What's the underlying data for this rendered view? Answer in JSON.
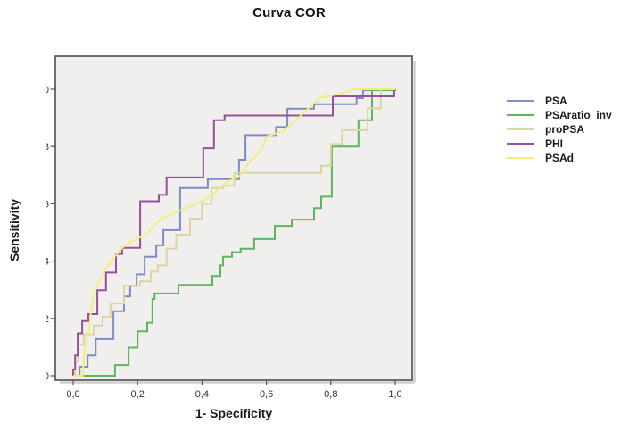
{
  "figure": {
    "title": "Curva COR"
  },
  "axes": {
    "x_label": "1- Specificity",
    "y_label": "Sensitivity",
    "x_tick_labels": [
      "0,0",
      "0,2",
      "0,4",
      "0,6",
      "0,8",
      "1,0"
    ],
    "y_tick_labels": [
      "0,0",
      "0,2",
      "0,4",
      "0,6",
      "0,8",
      "1,0"
    ]
  },
  "chart_data": {
    "type": "line",
    "subtype": "roc-step-curves",
    "title": "Curva COR",
    "xlabel": "1- Specificity",
    "ylabel": "Sensitivity",
    "xlim": [
      0,
      1
    ],
    "ylim": [
      0,
      1
    ],
    "x_ticks": [
      0,
      0.2,
      0.4,
      0.6,
      0.8,
      1.0
    ],
    "y_ticks": [
      0,
      0.2,
      0.4,
      0.6,
      0.8,
      1.0
    ],
    "grid": false,
    "legend_position": "right",
    "plot_background": "#f0efed",
    "frame_color": "#4e4e4e",
    "series": [
      {
        "name": "PSA",
        "color": "#7e8cc6",
        "points": [
          [
            0,
            0
          ],
          [
            0.02,
            0
          ],
          [
            0.02,
            0.031
          ],
          [
            0.045,
            0.031
          ],
          [
            0.045,
            0.071
          ],
          [
            0.07,
            0.071
          ],
          [
            0.07,
            0.128
          ],
          [
            0.125,
            0.128
          ],
          [
            0.125,
            0.225
          ],
          [
            0.158,
            0.225
          ],
          [
            0.158,
            0.277
          ],
          [
            0.177,
            0.277
          ],
          [
            0.177,
            0.314
          ],
          [
            0.197,
            0.314
          ],
          [
            0.197,
            0.354
          ],
          [
            0.222,
            0.354
          ],
          [
            0.222,
            0.415
          ],
          [
            0.258,
            0.415
          ],
          [
            0.258,
            0.455
          ],
          [
            0.28,
            0.455
          ],
          [
            0.28,
            0.508
          ],
          [
            0.332,
            0.508
          ],
          [
            0.332,
            0.655
          ],
          [
            0.418,
            0.655
          ],
          [
            0.418,
            0.686
          ],
          [
            0.515,
            0.686
          ],
          [
            0.515,
            0.754
          ],
          [
            0.535,
            0.754
          ],
          [
            0.535,
            0.84
          ],
          [
            0.63,
            0.84
          ],
          [
            0.63,
            0.868
          ],
          [
            0.665,
            0.868
          ],
          [
            0.665,
            0.932
          ],
          [
            0.748,
            0.932
          ],
          [
            0.748,
            0.948
          ],
          [
            0.88,
            0.948
          ],
          [
            0.88,
            0.969
          ],
          [
            0.9,
            0.969
          ],
          [
            0.9,
            0.997
          ],
          [
            1,
            0.997
          ],
          [
            1,
            1
          ]
        ]
      },
      {
        "name": "PSAratio_inv",
        "color": "#5cb75c",
        "points": [
          [
            0,
            0
          ],
          [
            0.13,
            0
          ],
          [
            0.13,
            0.037
          ],
          [
            0.172,
            0.037
          ],
          [
            0.172,
            0.098
          ],
          [
            0.2,
            0.098
          ],
          [
            0.2,
            0.155
          ],
          [
            0.23,
            0.155
          ],
          [
            0.23,
            0.185
          ],
          [
            0.246,
            0.185
          ],
          [
            0.246,
            0.268
          ],
          [
            0.253,
            0.268
          ],
          [
            0.253,
            0.287
          ],
          [
            0.327,
            0.287
          ],
          [
            0.327,
            0.317
          ],
          [
            0.432,
            0.317
          ],
          [
            0.432,
            0.348
          ],
          [
            0.457,
            0.348
          ],
          [
            0.457,
            0.385
          ],
          [
            0.465,
            0.385
          ],
          [
            0.465,
            0.415
          ],
          [
            0.493,
            0.415
          ],
          [
            0.493,
            0.431
          ],
          [
            0.52,
            0.431
          ],
          [
            0.52,
            0.443
          ],
          [
            0.562,
            0.443
          ],
          [
            0.562,
            0.477
          ],
          [
            0.626,
            0.477
          ],
          [
            0.626,
            0.523
          ],
          [
            0.679,
            0.523
          ],
          [
            0.679,
            0.545
          ],
          [
            0.748,
            0.545
          ],
          [
            0.748,
            0.585
          ],
          [
            0.77,
            0.585
          ],
          [
            0.77,
            0.625
          ],
          [
            0.803,
            0.625
          ],
          [
            0.803,
            0.8
          ],
          [
            0.886,
            0.8
          ],
          [
            0.886,
            0.892
          ],
          [
            0.928,
            0.892
          ],
          [
            0.928,
            0.997
          ],
          [
            1,
            0.997
          ],
          [
            1,
            1
          ]
        ]
      },
      {
        "name": "proPSA",
        "color": "#d9d5a4",
        "points": [
          [
            0,
            0
          ],
          [
            0.006,
            0
          ],
          [
            0.006,
            0.049
          ],
          [
            0.015,
            0.049
          ],
          [
            0.015,
            0.108
          ],
          [
            0.033,
            0.108
          ],
          [
            0.033,
            0.145
          ],
          [
            0.064,
            0.145
          ],
          [
            0.064,
            0.175
          ],
          [
            0.091,
            0.175
          ],
          [
            0.091,
            0.206
          ],
          [
            0.116,
            0.206
          ],
          [
            0.116,
            0.252
          ],
          [
            0.158,
            0.252
          ],
          [
            0.158,
            0.314
          ],
          [
            0.208,
            0.314
          ],
          [
            0.208,
            0.329
          ],
          [
            0.241,
            0.329
          ],
          [
            0.241,
            0.363
          ],
          [
            0.263,
            0.363
          ],
          [
            0.263,
            0.385
          ],
          [
            0.29,
            0.385
          ],
          [
            0.29,
            0.443
          ],
          [
            0.32,
            0.443
          ],
          [
            0.32,
            0.492
          ],
          [
            0.363,
            0.492
          ],
          [
            0.363,
            0.548
          ],
          [
            0.4,
            0.548
          ],
          [
            0.4,
            0.6
          ],
          [
            0.43,
            0.6
          ],
          [
            0.43,
            0.655
          ],
          [
            0.465,
            0.655
          ],
          [
            0.465,
            0.663
          ],
          [
            0.5,
            0.663
          ],
          [
            0.5,
            0.708
          ],
          [
            0.77,
            0.708
          ],
          [
            0.77,
            0.733
          ],
          [
            0.8,
            0.733
          ],
          [
            0.8,
            0.809
          ],
          [
            0.835,
            0.809
          ],
          [
            0.835,
            0.857
          ],
          [
            0.914,
            0.857
          ],
          [
            0.914,
            0.933
          ],
          [
            0.955,
            0.933
          ],
          [
            0.955,
            1
          ],
          [
            1,
            1
          ]
        ]
      },
      {
        "name": "PHI",
        "color": "#96519a",
        "points": [
          [
            0,
            0
          ],
          [
            0,
            0.022
          ],
          [
            0.006,
            0.022
          ],
          [
            0.006,
            0.071
          ],
          [
            0.014,
            0.071
          ],
          [
            0.014,
            0.148
          ],
          [
            0.028,
            0.148
          ],
          [
            0.028,
            0.191
          ],
          [
            0.047,
            0.191
          ],
          [
            0.047,
            0.215
          ],
          [
            0.075,
            0.215
          ],
          [
            0.075,
            0.298
          ],
          [
            0.102,
            0.298
          ],
          [
            0.102,
            0.36
          ],
          [
            0.133,
            0.36
          ],
          [
            0.133,
            0.425
          ],
          [
            0.152,
            0.425
          ],
          [
            0.152,
            0.446
          ],
          [
            0.208,
            0.446
          ],
          [
            0.208,
            0.609
          ],
          [
            0.266,
            0.609
          ],
          [
            0.266,
            0.631
          ],
          [
            0.29,
            0.631
          ],
          [
            0.29,
            0.692
          ],
          [
            0.404,
            0.692
          ],
          [
            0.404,
            0.794
          ],
          [
            0.437,
            0.794
          ],
          [
            0.437,
            0.892
          ],
          [
            0.47,
            0.892
          ],
          [
            0.47,
            0.908
          ],
          [
            0.806,
            0.908
          ],
          [
            0.806,
            0.975
          ],
          [
            0.997,
            0.975
          ],
          [
            0.997,
            1
          ],
          [
            1,
            1
          ]
        ]
      },
      {
        "name": "PSAd",
        "color": "#f3ee7c",
        "points": [
          [
            0,
            0
          ],
          [
            0.03,
            0
          ],
          [
            0.033,
            0.06
          ],
          [
            0.04,
            0.12
          ],
          [
            0.05,
            0.16
          ],
          [
            0.055,
            0.22
          ],
          [
            0.064,
            0.29
          ],
          [
            0.083,
            0.332
          ],
          [
            0.102,
            0.375
          ],
          [
            0.125,
            0.41
          ],
          [
            0.152,
            0.446
          ],
          [
            0.17,
            0.46
          ],
          [
            0.2,
            0.48
          ],
          [
            0.224,
            0.49
          ],
          [
            0.27,
            0.545
          ],
          [
            0.318,
            0.57
          ],
          [
            0.36,
            0.59
          ],
          [
            0.41,
            0.615
          ],
          [
            0.44,
            0.64
          ],
          [
            0.47,
            0.67
          ],
          [
            0.52,
            0.7
          ],
          [
            0.55,
            0.75
          ],
          [
            0.576,
            0.775
          ],
          [
            0.604,
            0.837
          ],
          [
            0.65,
            0.852
          ],
          [
            0.7,
            0.9
          ],
          [
            0.74,
            0.944
          ],
          [
            0.77,
            0.97
          ],
          [
            0.83,
            0.985
          ],
          [
            0.875,
            1
          ],
          [
            1,
            1
          ]
        ]
      }
    ]
  }
}
